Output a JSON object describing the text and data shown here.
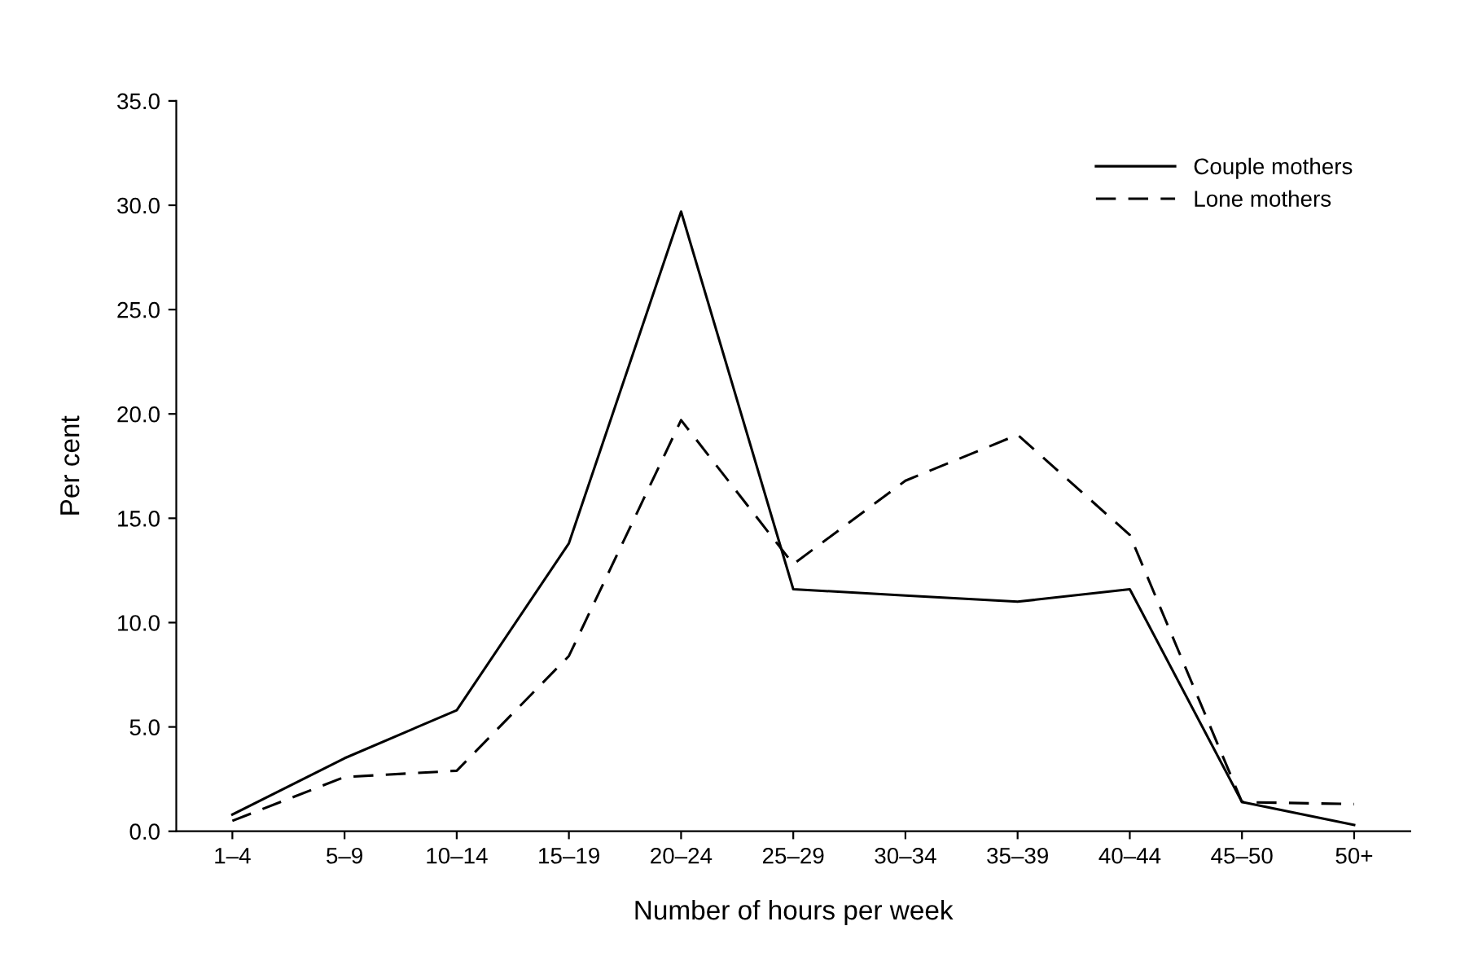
{
  "chart_data": {
    "type": "line",
    "xlabel": "Number of hours per week",
    "ylabel": "Per cent",
    "categories": [
      "1–4",
      "5–9",
      "10–14",
      "15–19",
      "20–24",
      "25–29",
      "30–34",
      "35–39",
      "40–44",
      "45–50",
      "50+"
    ],
    "series": [
      {
        "name": "Couple mothers",
        "color": "#000000",
        "line_style": "solid",
        "values": [
          0.8,
          3.5,
          5.8,
          13.8,
          29.7,
          11.6,
          11.3,
          11.0,
          11.6,
          1.4,
          0.3
        ]
      },
      {
        "name": "Lone mothers",
        "color": "#000000",
        "line_style": "dashed",
        "values": [
          0.5,
          2.6,
          2.9,
          8.4,
          19.7,
          12.8,
          16.8,
          19.0,
          14.2,
          1.4,
          1.3
        ]
      }
    ],
    "ylim": [
      0,
      35
    ],
    "yticks": [
      {
        "value": 0,
        "label": "0.0"
      },
      {
        "value": 5,
        "label": "5.0"
      },
      {
        "value": 10,
        "label": "10.0"
      },
      {
        "value": 15,
        "label": "15.0"
      },
      {
        "value": 20,
        "label": "20.0"
      },
      {
        "value": 25,
        "label": "25.0"
      },
      {
        "value": 30,
        "label": "30.0"
      },
      {
        "value": 35,
        "label": "35.0"
      }
    ],
    "grid": false,
    "legend": "top right",
    "marker": "none"
  }
}
